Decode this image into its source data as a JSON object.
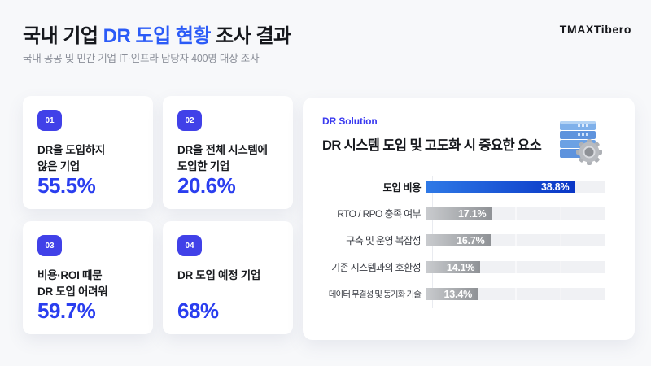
{
  "header": {
    "title_parts": {
      "pre": "국내 기업 ",
      "accent": "DR 도입 현황",
      "post": " 조사 결과"
    },
    "subtitle": "국내 공공 및 민간 기업 IT·인프라 담당자 400명 대상 조사",
    "logo": "TMAXTibero"
  },
  "colors": {
    "accent_blue": "#2b5bf7",
    "badge_blue": "#4141e8",
    "value_blue": "#2a3eef",
    "bar_blue_start": "#2e79e6",
    "bar_blue_end": "#0936c6",
    "bar_gray_start": "#c9cbce",
    "bar_gray_end": "#8f9296",
    "page_bg": "#f7f8fa"
  },
  "stat_cards": [
    {
      "number": "01",
      "label_line1": "DR을 도입하지",
      "label_line2": "않은 기업",
      "value": "55.5%"
    },
    {
      "number": "02",
      "label_line1": "DR을 전체 시스템에",
      "label_line2": "도입한 기업",
      "value": "20.6%"
    },
    {
      "number": "03",
      "label_line1": "비용·ROI 때문",
      "label_line2": "DR 도입 어려워",
      "value": "59.7%"
    },
    {
      "number": "04",
      "label_line1": "DR 도입 예정 기업",
      "label_line2": "",
      "value": "68%"
    }
  ],
  "panel": {
    "tag": "DR Solution",
    "title": "DR 시스템 도입 및 고도화 시 중요한 요소",
    "icon": "server-stack-gear-icon"
  },
  "chart_data": {
    "type": "bar",
    "orientation": "horizontal",
    "title": "DR 시스템 도입 및 고도화 시 중요한 요소",
    "categories": [
      "도입 비용",
      "RTO / RPO 충족 여부",
      "구축 및 운영 복잡성",
      "기존 시스템과의 호환성",
      "데이터 무결성 및 동기화 기술"
    ],
    "values": [
      38.8,
      17.1,
      16.7,
      14.1,
      13.4
    ],
    "value_labels": [
      "38.8%",
      "17.1%",
      "16.7%",
      "14.1%",
      "13.4%"
    ],
    "highlight_index": 0,
    "xlim": [
      0,
      47
    ],
    "grid": true,
    "legend": false
  }
}
